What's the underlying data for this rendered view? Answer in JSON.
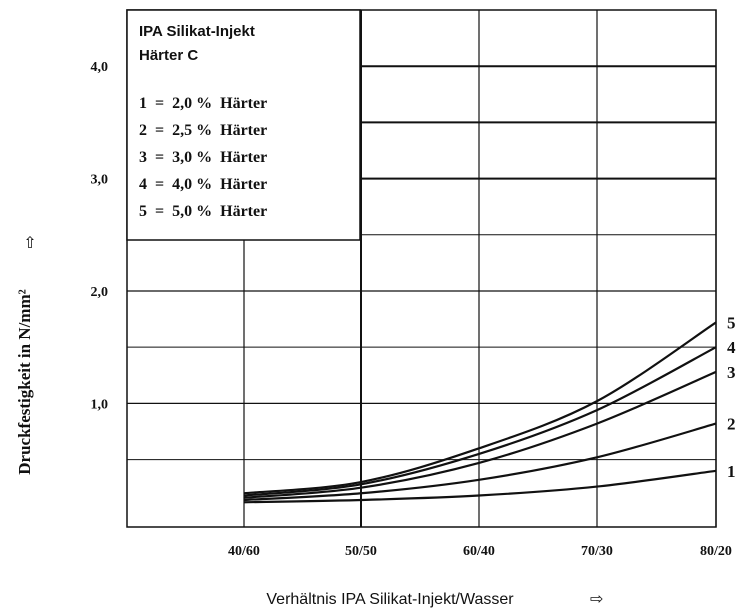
{
  "chart_data": {
    "type": "line",
    "title": "",
    "xlabel": "Verhältnis IPA Silikat-Injekt/Wasser",
    "ylabel": "Druckfestigkeit in N/mm²",
    "xlabel_arrow": "⇨",
    "ylabel_arrow": "⇧",
    "x_tick_labels": [
      "40/60",
      "50/50",
      "60/40",
      "70/30",
      "80/20"
    ],
    "y_tick_labels": [
      "1,0",
      "2,0",
      "3,0",
      "4,0"
    ],
    "y_ticks": [
      1.0,
      2.0,
      3.0,
      4.0
    ],
    "ylim": [
      -0.1,
      4.5
    ],
    "grid": true,
    "legend": {
      "placement": "top-left",
      "title_lines": [
        "IPA Silikat-Injekt",
        "Härter C"
      ],
      "items": [
        "1  =  2,0 %  Härter",
        "2  =  2,5 %  Härter",
        "3  =  3,0 %  Härter",
        "4  =  4,0 %  Härter",
        "5  =  5,0 %  Härter"
      ]
    },
    "x": [
      "40/60",
      "50/50",
      "60/40",
      "70/30",
      "80/20"
    ],
    "series": [
      {
        "name": "1",
        "values": [
          0.12,
          0.14,
          0.18,
          0.26,
          0.4
        ]
      },
      {
        "name": "2",
        "values": [
          0.14,
          0.2,
          0.32,
          0.52,
          0.82
        ]
      },
      {
        "name": "3",
        "values": [
          0.16,
          0.25,
          0.47,
          0.82,
          1.28
        ]
      },
      {
        "name": "4",
        "values": [
          0.18,
          0.28,
          0.55,
          0.94,
          1.5
        ]
      },
      {
        "name": "5",
        "values": [
          0.2,
          0.3,
          0.6,
          1.02,
          1.72
        ]
      }
    ],
    "series_colors": [
      "#111111",
      "#111111",
      "#111111",
      "#111111",
      "#111111"
    ]
  }
}
